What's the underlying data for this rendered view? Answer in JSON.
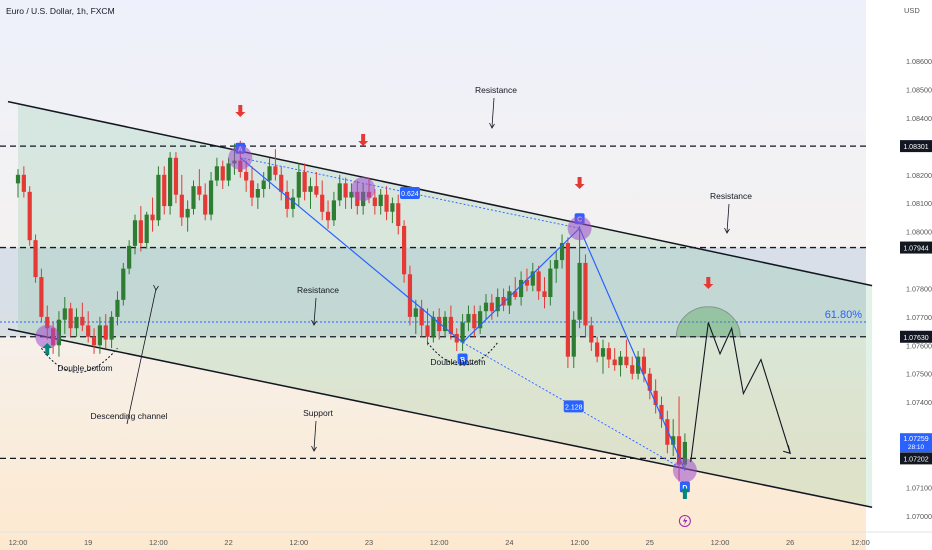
{
  "header": {
    "title": "Euro / U.S. Dollar, 1h, FXCM"
  },
  "chart_data": {
    "type": "candlestick",
    "title": "Euro / U.S. Dollar, 1h, FXCM",
    "currency": "USD",
    "ylim": [
      1.0695,
      1.0878
    ],
    "y_ticks": [
      "1.08600",
      "1.08500",
      "1.08400",
      "1.08200",
      "1.08100",
      "1.08000",
      "1.07800",
      "1.07700",
      "1.07600",
      "1.07500",
      "1.07400",
      "1.07100",
      "1.07000"
    ],
    "y_tick_values": [
      1.086,
      1.085,
      1.084,
      1.082,
      1.081,
      1.08,
      1.078,
      1.077,
      1.076,
      1.075,
      1.074,
      1.071,
      1.07
    ],
    "x_ticks": [
      "12:00",
      "19",
      "12:00",
      "22",
      "12:00",
      "23",
      "12:00",
      "24",
      "12:00",
      "25",
      "12:00",
      "26",
      "12:00"
    ],
    "x_tick_index": [
      0,
      12,
      24,
      36,
      48,
      60,
      72,
      84,
      96,
      108,
      120,
      132,
      144
    ],
    "levels": [
      {
        "label": "1.08301",
        "value": 1.08301
      },
      {
        "label": "1.07944",
        "value": 1.07944
      },
      {
        "label": "1.07630",
        "value": 1.0763
      },
      {
        "label": "1.07202",
        "value": 1.07202
      }
    ],
    "current_price": {
      "label": "1.07259",
      "value": 1.07259,
      "countdown": "28:10"
    },
    "fib_level": {
      "label": "61.80%",
      "value": 1.07682
    },
    "channel_upper": {
      "start": [
        0,
        1.0845
      ],
      "end": [
        146,
        1.0781
      ]
    },
    "channel_lower": {
      "start": [
        0,
        1.0765
      ],
      "end": [
        146,
        1.0703
      ]
    },
    "harmonic_points": [
      {
        "label": "A",
        "index": 38,
        "value": 1.0826
      },
      {
        "label": "B",
        "index": 76,
        "value": 1.0761
      },
      {
        "label": "C",
        "index": 96,
        "value": 1.08012
      },
      {
        "label": "D",
        "index": 114,
        "value": 1.0716
      }
    ],
    "ratios": [
      "0.624",
      "2.128"
    ],
    "annotations": [
      "Resistance",
      "Resistance",
      "Resistance",
      "Support",
      "Descending channel",
      "Double bottom",
      "Double bottom"
    ],
    "projection": [
      [
        115,
        1.0719
      ],
      [
        118,
        1.0768
      ],
      [
        120,
        1.0757
      ],
      [
        122,
        1.0766
      ],
      [
        124,
        1.0743
      ],
      [
        127,
        1.0755
      ],
      [
        132,
        1.0722
      ]
    ],
    "candles": [
      [
        1.0817,
        1.0822,
        1.0812,
        1.082
      ],
      [
        1.082,
        1.0823,
        1.0812,
        1.0814
      ],
      [
        1.0814,
        1.0816,
        1.0795,
        1.0797
      ],
      [
        1.0797,
        1.0799,
        1.0782,
        1.0784
      ],
      [
        1.0784,
        1.0787,
        1.0768,
        1.077
      ],
      [
        1.077,
        1.0774,
        1.0762,
        1.0766
      ],
      [
        1.0766,
        1.0768,
        1.0757,
        1.076
      ],
      [
        1.076,
        1.0772,
        1.0756,
        1.0769
      ],
      [
        1.0769,
        1.0777,
        1.0764,
        1.0773
      ],
      [
        1.0773,
        1.0775,
        1.0763,
        1.0766
      ],
      [
        1.0766,
        1.0773,
        1.0763,
        1.077
      ],
      [
        1.077,
        1.0775,
        1.0765,
        1.0767
      ],
      [
        1.0767,
        1.0772,
        1.0761,
        1.0763
      ],
      [
        1.0763,
        1.0766,
        1.0757,
        1.076
      ],
      [
        1.076,
        1.077,
        1.0757,
        1.0767
      ],
      [
        1.0767,
        1.0771,
        1.0759,
        1.0762
      ],
      [
        1.0762,
        1.0772,
        1.0759,
        1.077
      ],
      [
        1.077,
        1.0779,
        1.0767,
        1.0776
      ],
      [
        1.0776,
        1.0789,
        1.0774,
        1.0787
      ],
      [
        1.0787,
        1.0797,
        1.0785,
        1.0795
      ],
      [
        1.0795,
        1.0806,
        1.0792,
        1.0804
      ],
      [
        1.0804,
        1.0809,
        1.0793,
        1.0796
      ],
      [
        1.0796,
        1.0807,
        1.0794,
        1.0806
      ],
      [
        1.0806,
        1.0812,
        1.08,
        1.0804
      ],
      [
        1.0804,
        1.0823,
        1.0802,
        1.082
      ],
      [
        1.082,
        1.0823,
        1.0806,
        1.0809
      ],
      [
        1.0809,
        1.0828,
        1.0806,
        1.0826
      ],
      [
        1.0826,
        1.0828,
        1.081,
        1.0813
      ],
      [
        1.0813,
        1.082,
        1.0802,
        1.0805
      ],
      [
        1.0805,
        1.0811,
        1.08,
        1.0808
      ],
      [
        1.0808,
        1.0818,
        1.0806,
        1.0816
      ],
      [
        1.0816,
        1.0822,
        1.0811,
        1.0813
      ],
      [
        1.0813,
        1.0817,
        1.0804,
        1.0806
      ],
      [
        1.0806,
        1.0821,
        1.0804,
        1.0818
      ],
      [
        1.0818,
        1.0826,
        1.0816,
        1.0823
      ],
      [
        1.0823,
        1.0825,
        1.0815,
        1.0818
      ],
      [
        1.0818,
        1.0826,
        1.0816,
        1.0824
      ],
      [
        1.0824,
        1.0831,
        1.082,
        1.0825
      ],
      [
        1.0825,
        1.0832,
        1.0819,
        1.0821
      ],
      [
        1.0821,
        1.0825,
        1.0814,
        1.0818
      ],
      [
        1.0818,
        1.0823,
        1.0809,
        1.0812
      ],
      [
        1.0812,
        1.0817,
        1.0808,
        1.0815
      ],
      [
        1.0815,
        1.0821,
        1.0812,
        1.0818
      ],
      [
        1.0818,
        1.0826,
        1.0815,
        1.0823
      ],
      [
        1.0823,
        1.0829,
        1.0818,
        1.082
      ],
      [
        1.082,
        1.0823,
        1.0811,
        1.0814
      ],
      [
        1.0814,
        1.0818,
        1.0805,
        1.0808
      ],
      [
        1.0808,
        1.0815,
        1.0805,
        1.0812
      ],
      [
        1.0812,
        1.0824,
        1.0809,
        1.0821
      ],
      [
        1.0821,
        1.0824,
        1.0811,
        1.0814
      ],
      [
        1.0814,
        1.0819,
        1.0808,
        1.0816
      ],
      [
        1.0816,
        1.0821,
        1.0812,
        1.0813
      ],
      [
        1.0813,
        1.0818,
        1.0804,
        1.0807
      ],
      [
        1.0807,
        1.0811,
        1.0801,
        1.0804
      ],
      [
        1.0804,
        1.0814,
        1.0802,
        1.0811
      ],
      [
        1.0811,
        1.082,
        1.0809,
        1.0817
      ],
      [
        1.0817,
        1.0819,
        1.0808,
        1.0812
      ],
      [
        1.0812,
        1.0817,
        1.0808,
        1.0814
      ],
      [
        1.0814,
        1.0818,
        1.0806,
        1.0809
      ],
      [
        1.0809,
        1.0817,
        1.0806,
        1.0814
      ],
      [
        1.0814,
        1.0819,
        1.081,
        1.0812
      ],
      [
        1.0812,
        1.0815,
        1.0806,
        1.0809
      ],
      [
        1.0809,
        1.0815,
        1.0806,
        1.0813
      ],
      [
        1.0813,
        1.0816,
        1.0804,
        1.0807
      ],
      [
        1.0807,
        1.0812,
        1.0803,
        1.081
      ],
      [
        1.081,
        1.0813,
        1.0799,
        1.0802
      ],
      [
        1.0802,
        1.0804,
        1.0782,
        1.0785
      ],
      [
        1.0785,
        1.0788,
        1.0767,
        1.077
      ],
      [
        1.077,
        1.0776,
        1.0764,
        1.0773
      ],
      [
        1.0773,
        1.0776,
        1.0763,
        1.0767
      ],
      [
        1.0767,
        1.0773,
        1.076,
        1.0763
      ],
      [
        1.0763,
        1.0772,
        1.0761,
        1.077
      ],
      [
        1.077,
        1.0773,
        1.0762,
        1.0765
      ],
      [
        1.0765,
        1.0772,
        1.0763,
        1.077
      ],
      [
        1.077,
        1.0774,
        1.0762,
        1.0764
      ],
      [
        1.0764,
        1.0766,
        1.0758,
        1.0761
      ],
      [
        1.0761,
        1.0771,
        1.0758,
        1.0768
      ],
      [
        1.0768,
        1.0774,
        1.0765,
        1.0771
      ],
      [
        1.0771,
        1.0774,
        1.0763,
        1.0766
      ],
      [
        1.0766,
        1.0774,
        1.0764,
        1.0772
      ],
      [
        1.0772,
        1.0778,
        1.0769,
        1.0775
      ],
      [
        1.0775,
        1.0778,
        1.0769,
        1.0772
      ],
      [
        1.0772,
        1.078,
        1.077,
        1.0777
      ],
      [
        1.0777,
        1.078,
        1.0772,
        1.0774
      ],
      [
        1.0774,
        1.0781,
        1.0771,
        1.0779
      ],
      [
        1.0779,
        1.0784,
        1.0776,
        1.0777
      ],
      [
        1.0777,
        1.0786,
        1.0774,
        1.0783
      ],
      [
        1.0783,
        1.0787,
        1.0779,
        1.0781
      ],
      [
        1.0781,
        1.0789,
        1.0779,
        1.0786
      ],
      [
        1.0786,
        1.0788,
        1.0776,
        1.0779
      ],
      [
        1.0779,
        1.0784,
        1.0773,
        1.0777
      ],
      [
        1.0777,
        1.079,
        1.0774,
        1.0787
      ],
      [
        1.0787,
        1.0793,
        1.0782,
        1.079
      ],
      [
        1.079,
        1.0799,
        1.0787,
        1.0796
      ],
      [
        1.0796,
        1.0798,
        1.0752,
        1.0756
      ],
      [
        1.0756,
        1.0772,
        1.0752,
        1.0769
      ],
      [
        1.0769,
        1.0802,
        1.0766,
        1.0789
      ],
      [
        1.0789,
        1.0792,
        1.0763,
        1.0767
      ],
      [
        1.0767,
        1.077,
        1.0758,
        1.0761
      ],
      [
        1.0761,
        1.0763,
        1.0754,
        1.0756
      ],
      [
        1.0756,
        1.0762,
        1.075,
        1.0759
      ],
      [
        1.0759,
        1.0761,
        1.0752,
        1.0755
      ],
      [
        1.0755,
        1.0759,
        1.0751,
        1.0753
      ],
      [
        1.0753,
        1.0758,
        1.0749,
        1.0756
      ],
      [
        1.0756,
        1.0762,
        1.0752,
        1.0753
      ],
      [
        1.0753,
        1.0756,
        1.0748,
        1.075
      ],
      [
        1.075,
        1.0758,
        1.0748,
        1.0756
      ],
      [
        1.0756,
        1.0759,
        1.0747,
        1.075
      ],
      [
        1.075,
        1.0752,
        1.0741,
        1.0744
      ],
      [
        1.0744,
        1.0748,
        1.0736,
        1.0739
      ],
      [
        1.0739,
        1.0742,
        1.0731,
        1.0734
      ],
      [
        1.0734,
        1.0737,
        1.0722,
        1.0725
      ],
      [
        1.0725,
        1.0734,
        1.0721,
        1.0728
      ],
      [
        1.0728,
        1.0742,
        1.0712,
        1.0718
      ],
      [
        1.0718,
        1.0729,
        1.0716,
        1.0726
      ]
    ]
  }
}
